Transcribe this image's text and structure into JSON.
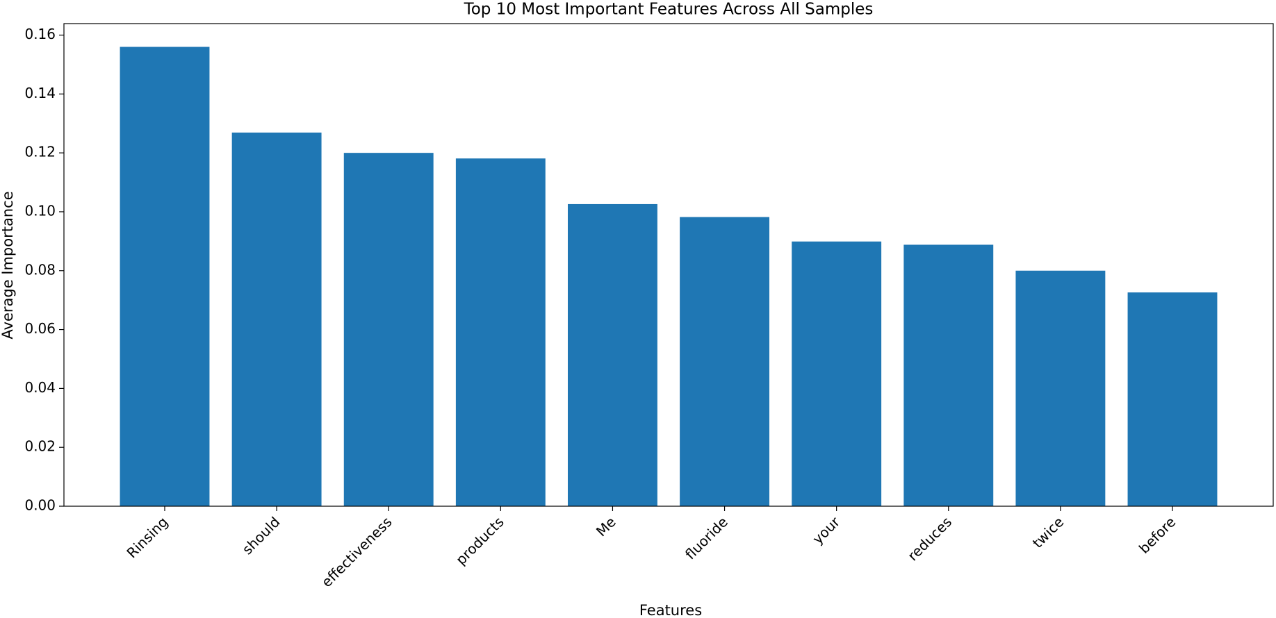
{
  "chart_data": {
    "type": "bar",
    "title": "Top 10 Most Important Features Across All Samples",
    "x_label": "Features",
    "y_label": "Average Importance",
    "categories": [
      "Rinsing",
      "should",
      "effectiveness",
      "products",
      "Me",
      "fluoride",
      "your",
      "reduces",
      "twice",
      "before"
    ],
    "values": [
      0.156,
      0.1269,
      0.12,
      0.1181,
      0.1026,
      0.0982,
      0.0899,
      0.0888,
      0.08,
      0.0726
    ],
    "color": "#1f77b4",
    "ylim": [
      0,
      0.1639
    ],
    "yticks": [
      {
        "value": 0,
        "label": "0.00"
      },
      {
        "value": 0.02,
        "label": "0.02"
      },
      {
        "value": 0.04,
        "label": "0.04"
      },
      {
        "value": 0.06,
        "label": "0.06"
      },
      {
        "value": 0.08,
        "label": "0.08"
      },
      {
        "value": 0.1,
        "label": "0.10"
      },
      {
        "value": 0.12,
        "label": "0.12"
      },
      {
        "value": 0.14,
        "label": "0.14"
      },
      {
        "value": 0.16,
        "label": "0.16"
      }
    ],
    "grid": false
  }
}
